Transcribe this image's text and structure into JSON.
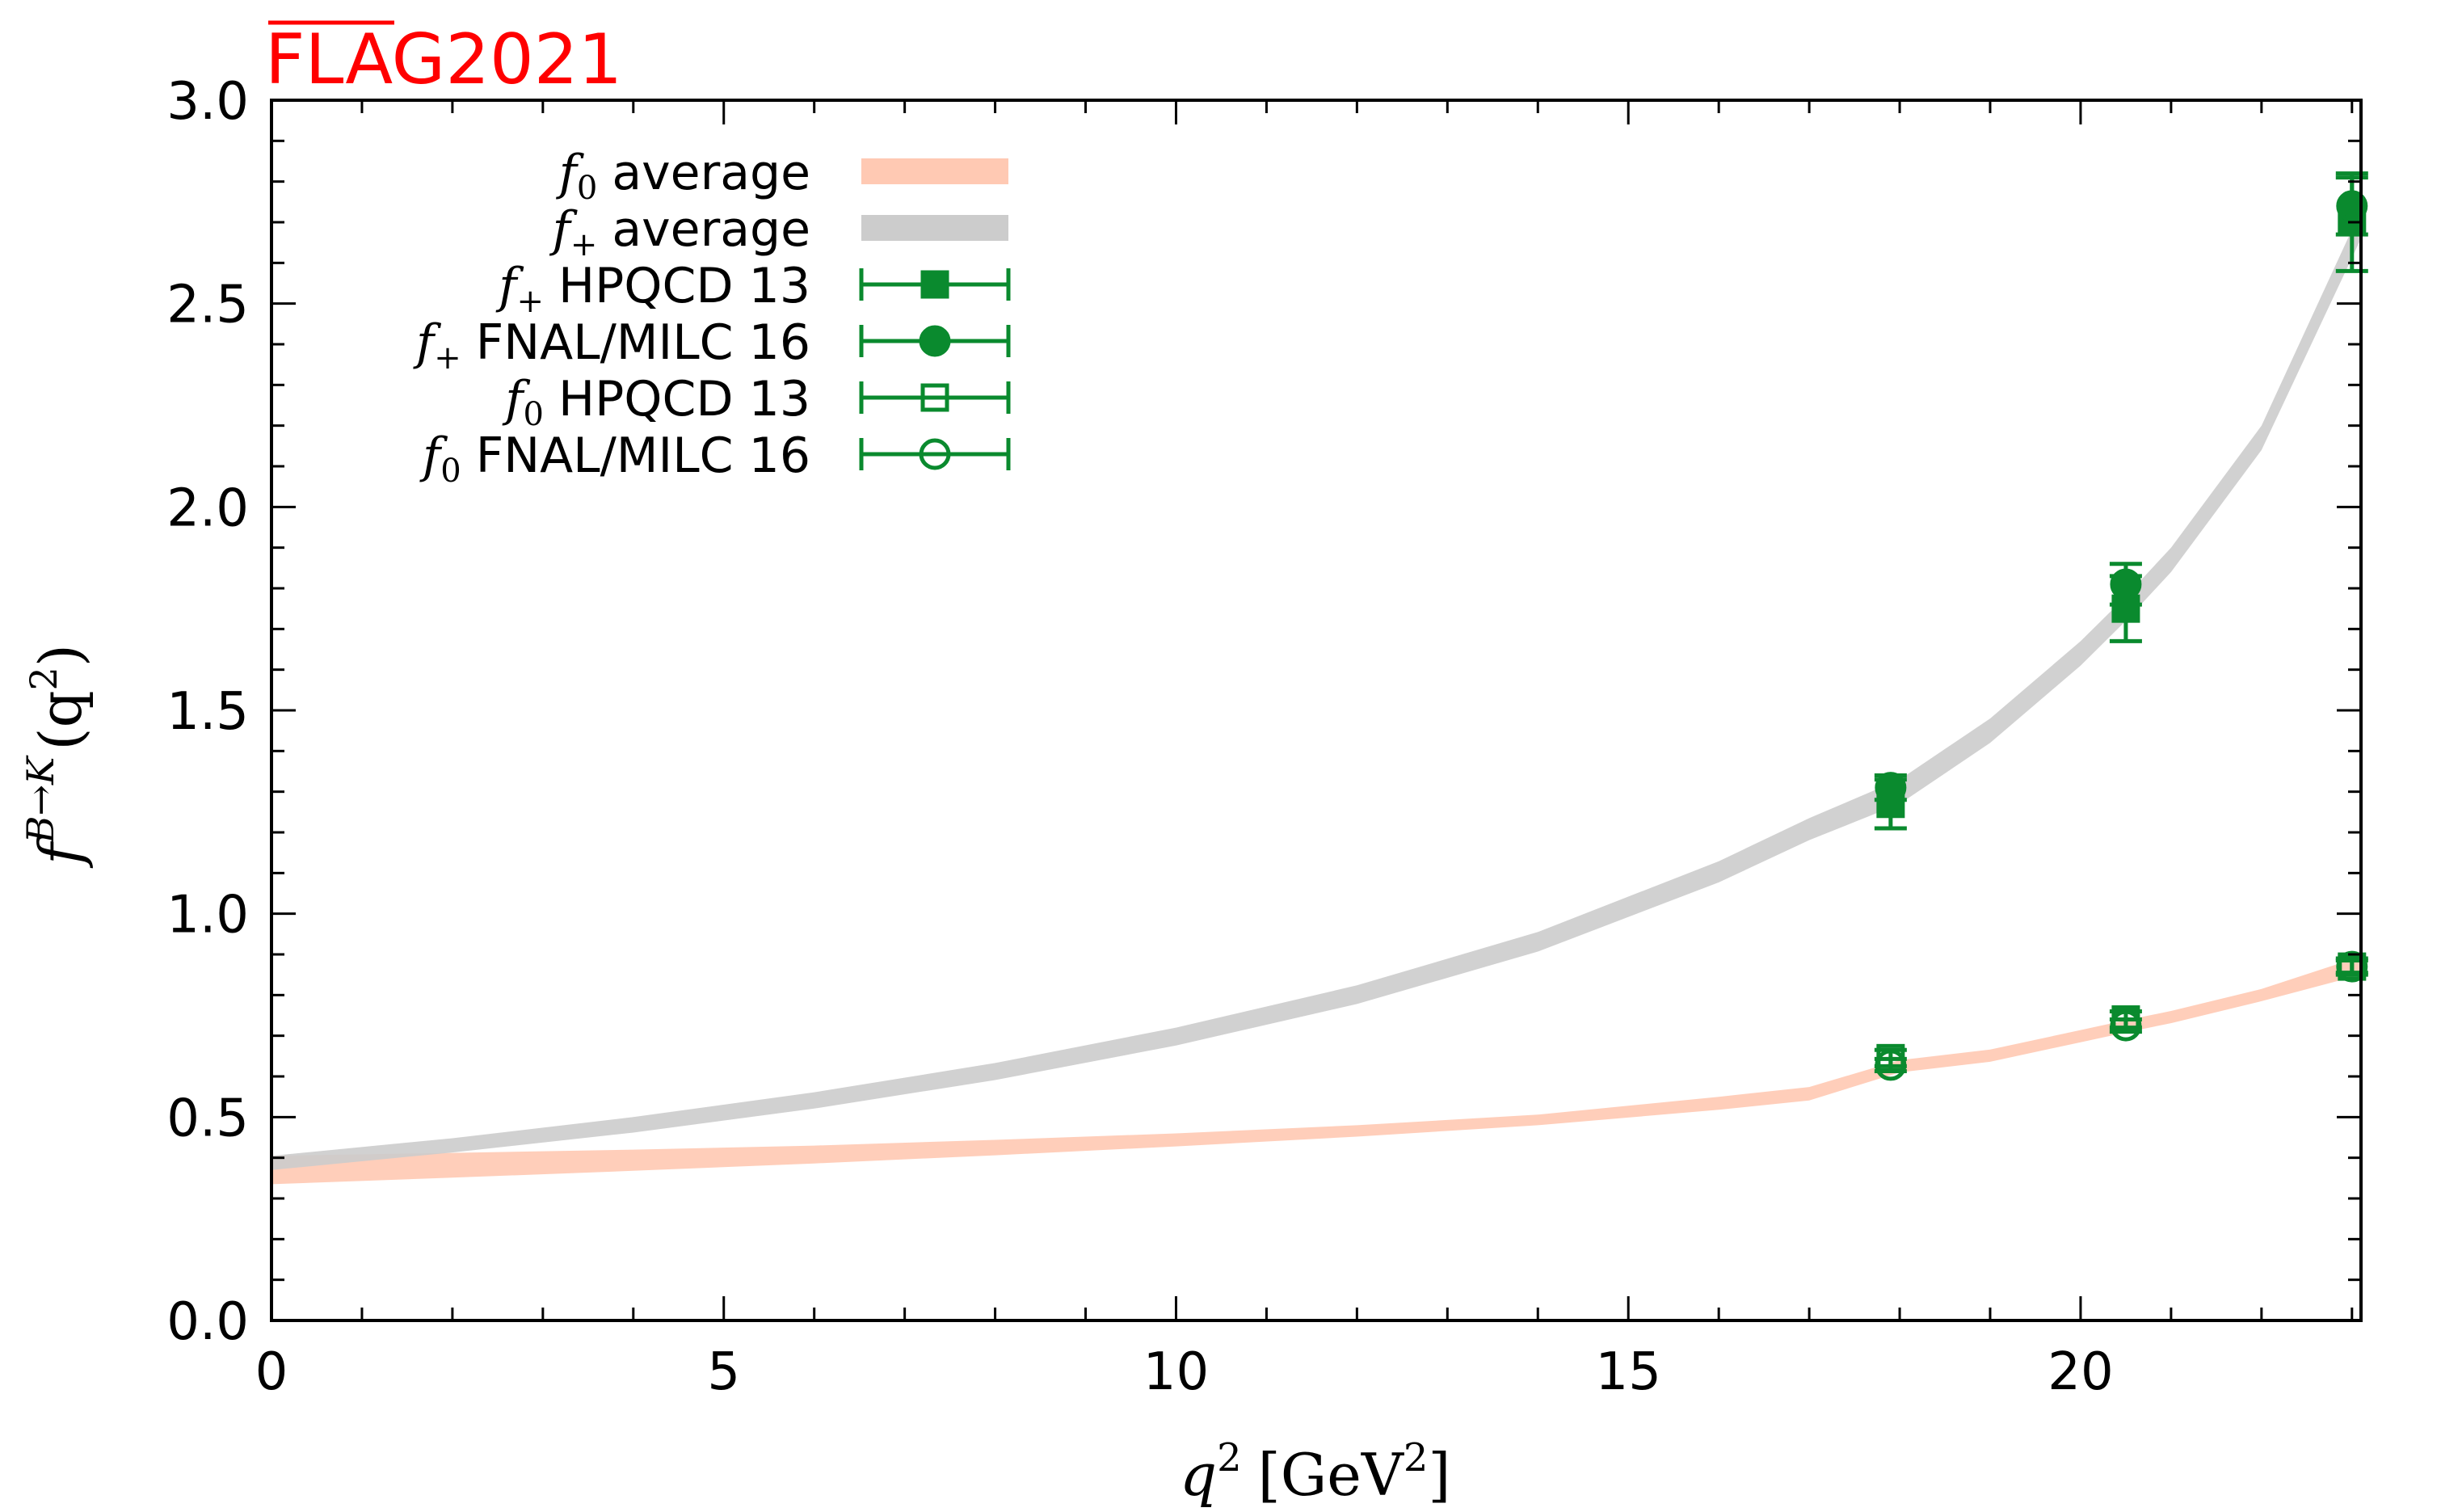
{
  "branding": {
    "logo_text": "FLAG2021",
    "logo_color": "#ff0000"
  },
  "chart_data": {
    "type": "line",
    "xlabel": {
      "base": "q",
      "sup": "2",
      "unit_open": "[GeV",
      "unit_sup": "2",
      "unit_close": "]"
    },
    "ylabel": {
      "f": "f",
      "sup": "B→K",
      "arg_open": "(q",
      "arg_sup": "2",
      "arg_close": ")"
    },
    "xlim": [
      0,
      23.1
    ],
    "ylim": [
      0,
      3.0
    ],
    "x_ticks": [
      0,
      5,
      10,
      15,
      20
    ],
    "x_tick_labels": [
      "0",
      "5",
      "10",
      "15",
      "20"
    ],
    "y_ticks": [
      0.0,
      0.5,
      1.0,
      1.5,
      2.0,
      2.5,
      3.0
    ],
    "y_tick_labels": [
      "0.0",
      "0.5",
      "1.0",
      "1.5",
      "2.0",
      "2.5",
      "3.0"
    ],
    "x_minor_step": 1,
    "y_minor_step": 0.1,
    "grid": false,
    "legend_position": "top-left",
    "colors": {
      "f0_band": "#ffc9b3",
      "fplus_band": "#cccccc",
      "data": "#0a8a2e"
    },
    "bands": [
      {
        "id": "f0_band",
        "legend_sym": "f",
        "legend_sub": "0",
        "legend_text": "average",
        "x": [
          0,
          2,
          4,
          6,
          8,
          10,
          12,
          14,
          16,
          17,
          18,
          19,
          20,
          20.5,
          21,
          22,
          23.1
        ],
        "lo": [
          0.335,
          0.351,
          0.368,
          0.386,
          0.406,
          0.428,
          0.452,
          0.48,
          0.518,
          0.541,
          0.61,
          0.636,
          0.684,
          0.708,
          0.731,
          0.785,
          0.85
        ],
        "hi": [
          0.405,
          0.412,
          0.42,
          0.43,
          0.444,
          0.46,
          0.48,
          0.506,
          0.55,
          0.574,
          0.64,
          0.666,
          0.714,
          0.738,
          0.761,
          0.815,
          0.895
        ]
      },
      {
        "id": "fplus_band",
        "legend_sym": "f",
        "legend_sub": "+",
        "legend_text": "average",
        "x": [
          0,
          2,
          4,
          6,
          8,
          10,
          12,
          14,
          16,
          17,
          18,
          19,
          20,
          20.5,
          21,
          22,
          23.1
        ],
        "lo": [
          0.37,
          0.413,
          0.462,
          0.521,
          0.591,
          0.676,
          0.778,
          0.907,
          1.077,
          1.181,
          1.27,
          1.42,
          1.61,
          1.72,
          1.84,
          2.14,
          2.66
        ],
        "hi": [
          0.405,
          0.448,
          0.5,
          0.561,
          0.633,
          0.72,
          0.824,
          0.955,
          1.129,
          1.235,
          1.33,
          1.48,
          1.67,
          1.78,
          1.9,
          2.2,
          2.73
        ]
      }
    ],
    "series": [
      {
        "id": "fplus_hpqcd13",
        "legend_sym": "f",
        "legend_sub": "+",
        "name": "HPQCD 13",
        "marker": "square",
        "filled": true,
        "x": [
          17.9,
          20.5,
          23.0
        ],
        "y": [
          1.27,
          1.75,
          2.7
        ],
        "err": [
          0.06,
          0.08,
          0.12
        ]
      },
      {
        "id": "fplus_fnalmilc16",
        "legend_sym": "f",
        "legend_sub": "+",
        "name": "FNAL/MILC 16",
        "marker": "circle",
        "filled": true,
        "x": [
          17.9,
          20.5,
          23.0
        ],
        "y": [
          1.31,
          1.81,
          2.74
        ],
        "err": [
          0.03,
          0.05,
          0.07
        ]
      },
      {
        "id": "f0_hpqcd13",
        "legend_sym": "f",
        "legend_sub": "0",
        "name": "HPQCD 13",
        "marker": "square",
        "filled": false,
        "x": [
          17.9,
          20.5,
          23.0
        ],
        "y": [
          0.645,
          0.74,
          0.87
        ],
        "err": [
          0.02,
          0.02,
          0.02
        ]
      },
      {
        "id": "f0_fnalmilc16",
        "legend_sym": "f",
        "legend_sub": "0",
        "name": "FNAL/MILC 16",
        "marker": "circle",
        "filled": false,
        "x": [
          17.9,
          20.5,
          23.0
        ],
        "y": [
          0.628,
          0.725,
          0.87
        ],
        "err": [
          0.015,
          0.015,
          0.015
        ]
      }
    ]
  }
}
